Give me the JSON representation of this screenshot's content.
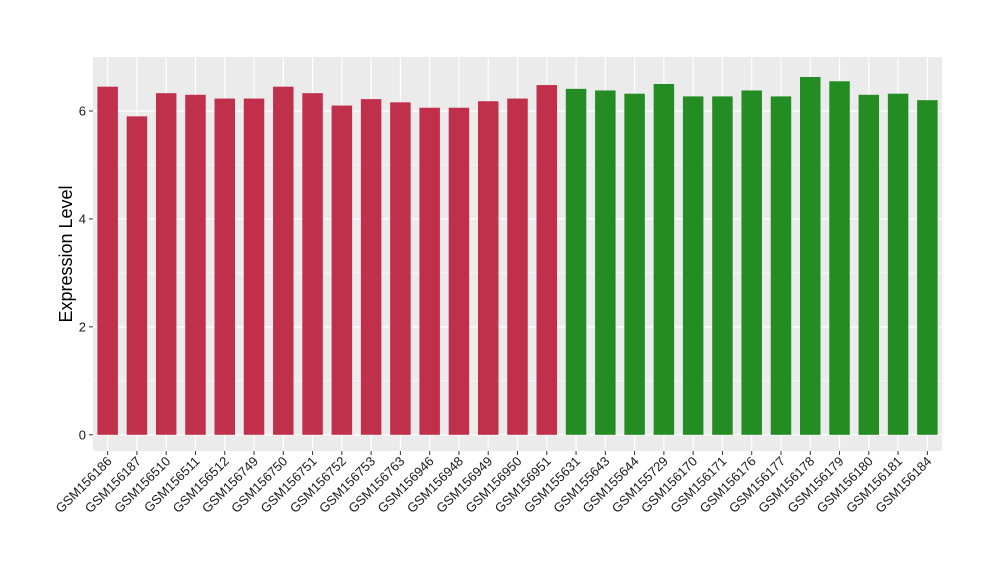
{
  "chart_data": {
    "type": "bar",
    "title": "",
    "xlabel": "",
    "ylabel": "Expression Level",
    "ylim": [
      -0.3,
      7.0
    ],
    "yticks": [
      0,
      2,
      4,
      6
    ],
    "grid": true,
    "legend": "none",
    "colors": {
      "panel_bg": "#ebebeb",
      "grid": "#ffffff",
      "group_1": "#c0304a",
      "group_2": "#238c23"
    },
    "categories": [
      "GSM156186",
      "GSM156187",
      "GSM156510",
      "GSM156511",
      "GSM156512",
      "GSM156749",
      "GSM156750",
      "GSM156751",
      "GSM156752",
      "GSM156753",
      "GSM156763",
      "GSM156946",
      "GSM156948",
      "GSM156949",
      "GSM156950",
      "GSM156951",
      "GSM155631",
      "GSM155643",
      "GSM155644",
      "GSM155729",
      "GSM156170",
      "GSM156171",
      "GSM156176",
      "GSM156177",
      "GSM156178",
      "GSM156179",
      "GSM156180",
      "GSM156181",
      "GSM156184"
    ],
    "values": [
      6.45,
      5.9,
      6.33,
      6.3,
      6.23,
      6.23,
      6.45,
      6.33,
      6.1,
      6.22,
      6.16,
      6.06,
      6.06,
      6.18,
      6.23,
      6.48,
      6.41,
      6.38,
      6.32,
      6.5,
      6.27,
      6.27,
      6.38,
      6.27,
      6.63,
      6.55,
      6.3,
      6.32,
      6.2
    ],
    "bar_groups": [
      "group_1",
      "group_1",
      "group_1",
      "group_1",
      "group_1",
      "group_1",
      "group_1",
      "group_1",
      "group_1",
      "group_1",
      "group_1",
      "group_1",
      "group_1",
      "group_1",
      "group_1",
      "group_1",
      "group_2",
      "group_2",
      "group_2",
      "group_2",
      "group_2",
      "group_2",
      "group_2",
      "group_2",
      "group_2",
      "group_2",
      "group_2",
      "group_2",
      "group_2"
    ]
  }
}
